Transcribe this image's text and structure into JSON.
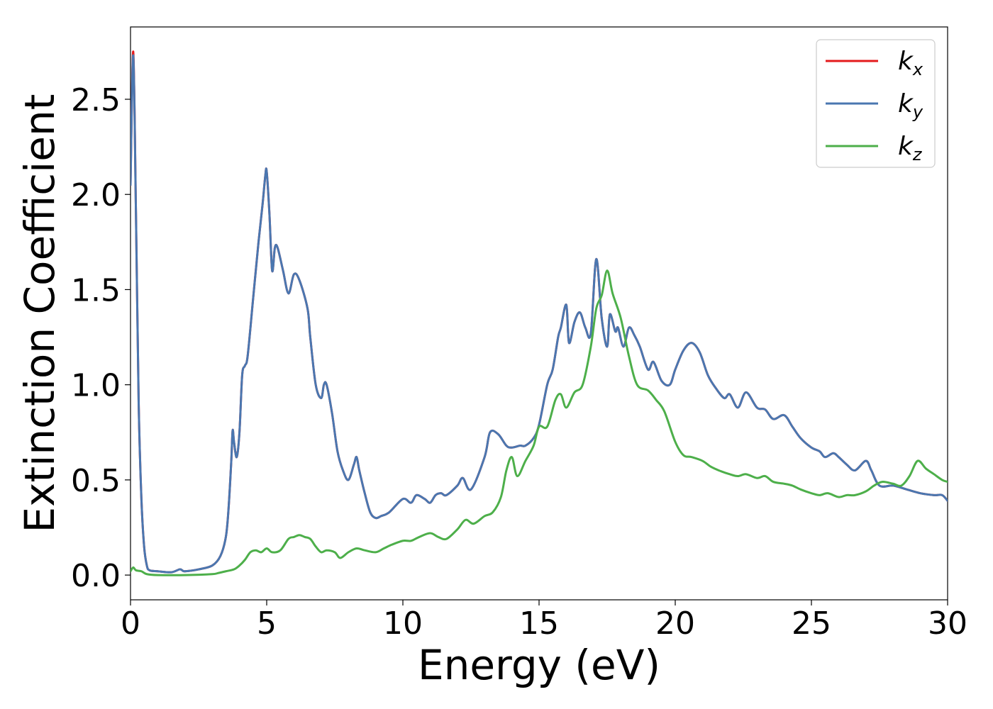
{
  "chart_data": {
    "type": "line",
    "xlabel": "Energy (eV)",
    "ylabel": "Extinction Coefficient",
    "xlim": [
      0,
      30
    ],
    "ylim": [
      -0.13,
      2.88
    ],
    "xticks": [
      "0",
      "5",
      "10",
      "15",
      "20",
      "25",
      "30"
    ],
    "yticks": [
      "0.0",
      "0.5",
      "1.0",
      "1.5",
      "2.0",
      "2.5"
    ],
    "grid": false,
    "legend_position": "top-right",
    "series": [
      {
        "name": "k_x",
        "legend_base": "k",
        "legend_sub": "x",
        "color": "#e41a1c",
        "x": [
          0.0,
          0.1,
          0.2,
          0.3,
          0.4,
          0.5,
          0.6,
          0.7,
          1.0,
          1.5,
          1.8,
          1.9,
          2.0,
          2.5,
          3.0,
          3.3,
          3.5,
          3.6,
          3.7,
          3.75,
          3.8,
          3.9,
          4.0,
          4.1,
          4.2,
          4.3,
          4.5,
          4.7,
          4.85,
          4.95,
          5.0,
          5.1,
          5.2,
          5.3,
          5.4,
          5.6,
          5.8,
          6.0,
          6.2,
          6.5,
          6.6,
          6.8,
          7.0,
          7.1,
          7.2,
          7.4,
          7.6,
          7.8,
          8.0,
          8.2,
          8.3,
          8.4,
          8.6,
          8.8,
          9.0,
          9.2,
          9.5,
          10.0,
          10.3,
          10.5,
          10.8,
          11.0,
          11.2,
          11.4,
          11.6,
          12.0,
          12.2,
          12.5,
          13.0,
          13.2,
          13.5,
          13.8,
          14.0,
          14.3,
          14.5,
          14.8,
          15.0,
          15.3,
          15.5,
          15.7,
          15.8,
          16.0,
          16.1,
          16.3,
          16.5,
          16.7,
          16.9,
          17.1,
          17.3,
          17.5,
          17.6,
          17.8,
          17.9,
          18.1,
          18.3,
          18.5,
          18.7,
          19.0,
          19.2,
          19.5,
          19.8,
          20.0,
          20.3,
          20.6,
          20.9,
          21.2,
          21.5,
          21.8,
          22.0,
          22.3,
          22.6,
          23.0,
          23.3,
          23.6,
          24.0,
          24.3,
          24.6,
          25.0,
          25.3,
          25.5,
          25.8,
          26.0,
          26.3,
          26.6,
          27.0,
          27.2,
          27.5,
          28.0,
          28.5,
          29.0,
          29.5,
          29.8,
          30.0
        ],
        "y": [
          2.05,
          2.75,
          1.9,
          0.9,
          0.4,
          0.15,
          0.05,
          0.025,
          0.02,
          0.015,
          0.03,
          0.025,
          0.02,
          0.03,
          0.05,
          0.1,
          0.2,
          0.35,
          0.6,
          0.76,
          0.7,
          0.62,
          0.75,
          1.05,
          1.1,
          1.15,
          1.45,
          1.75,
          1.95,
          2.1,
          2.12,
          1.9,
          1.6,
          1.72,
          1.72,
          1.6,
          1.48,
          1.58,
          1.55,
          1.4,
          1.25,
          1.0,
          0.93,
          1.0,
          1.0,
          0.85,
          0.65,
          0.55,
          0.5,
          0.58,
          0.62,
          0.55,
          0.43,
          0.33,
          0.3,
          0.31,
          0.33,
          0.4,
          0.38,
          0.42,
          0.4,
          0.38,
          0.42,
          0.43,
          0.42,
          0.47,
          0.51,
          0.45,
          0.62,
          0.75,
          0.74,
          0.68,
          0.67,
          0.68,
          0.68,
          0.72,
          0.79,
          1.0,
          1.08,
          1.25,
          1.3,
          1.42,
          1.22,
          1.33,
          1.38,
          1.3,
          1.27,
          1.66,
          1.35,
          1.2,
          1.37,
          1.28,
          1.3,
          1.2,
          1.3,
          1.26,
          1.2,
          1.08,
          1.12,
          1.02,
          1.0,
          1.08,
          1.18,
          1.22,
          1.17,
          1.05,
          0.98,
          0.93,
          0.95,
          0.88,
          0.96,
          0.88,
          0.87,
          0.82,
          0.84,
          0.78,
          0.72,
          0.67,
          0.65,
          0.62,
          0.64,
          0.62,
          0.58,
          0.55,
          0.6,
          0.55,
          0.47,
          0.47,
          0.45,
          0.43,
          0.42,
          0.42,
          0.39
        ]
      },
      {
        "name": "k_y",
        "legend_base": "k",
        "legend_sub": "y",
        "color": "#4a77b0",
        "x": [
          0.0,
          0.1,
          0.2,
          0.3,
          0.4,
          0.5,
          0.6,
          0.7,
          1.0,
          1.5,
          1.8,
          1.9,
          2.0,
          2.5,
          3.0,
          3.3,
          3.5,
          3.6,
          3.7,
          3.75,
          3.8,
          3.9,
          4.0,
          4.1,
          4.2,
          4.3,
          4.5,
          4.7,
          4.85,
          4.95,
          5.0,
          5.1,
          5.2,
          5.3,
          5.4,
          5.6,
          5.8,
          6.0,
          6.2,
          6.5,
          6.6,
          6.8,
          7.0,
          7.1,
          7.2,
          7.4,
          7.6,
          7.8,
          8.0,
          8.2,
          8.3,
          8.4,
          8.6,
          8.8,
          9.0,
          9.2,
          9.5,
          10.0,
          10.3,
          10.5,
          10.8,
          11.0,
          11.2,
          11.4,
          11.6,
          12.0,
          12.2,
          12.5,
          13.0,
          13.2,
          13.5,
          13.8,
          14.0,
          14.3,
          14.5,
          14.8,
          15.0,
          15.3,
          15.5,
          15.7,
          15.8,
          16.0,
          16.1,
          16.3,
          16.5,
          16.7,
          16.9,
          17.1,
          17.3,
          17.5,
          17.6,
          17.8,
          17.9,
          18.1,
          18.3,
          18.5,
          18.7,
          19.0,
          19.2,
          19.5,
          19.8,
          20.0,
          20.3,
          20.6,
          20.9,
          21.2,
          21.5,
          21.8,
          22.0,
          22.3,
          22.6,
          23.0,
          23.3,
          23.6,
          24.0,
          24.3,
          24.6,
          25.0,
          25.3,
          25.5,
          25.8,
          26.0,
          26.3,
          26.6,
          27.0,
          27.2,
          27.5,
          28.0,
          28.5,
          29.0,
          29.5,
          29.8,
          30.0
        ],
        "y": [
          2.05,
          2.73,
          1.9,
          0.9,
          0.4,
          0.15,
          0.05,
          0.025,
          0.02,
          0.015,
          0.03,
          0.025,
          0.02,
          0.03,
          0.05,
          0.1,
          0.2,
          0.35,
          0.6,
          0.76,
          0.7,
          0.62,
          0.75,
          1.05,
          1.1,
          1.15,
          1.45,
          1.75,
          1.95,
          2.1,
          2.12,
          1.9,
          1.6,
          1.72,
          1.72,
          1.6,
          1.48,
          1.58,
          1.55,
          1.4,
          1.25,
          1.0,
          0.93,
          1.0,
          1.0,
          0.85,
          0.65,
          0.55,
          0.5,
          0.58,
          0.62,
          0.55,
          0.43,
          0.33,
          0.3,
          0.31,
          0.33,
          0.4,
          0.38,
          0.42,
          0.4,
          0.38,
          0.42,
          0.43,
          0.42,
          0.47,
          0.51,
          0.45,
          0.62,
          0.75,
          0.74,
          0.68,
          0.67,
          0.68,
          0.68,
          0.72,
          0.79,
          1.0,
          1.08,
          1.25,
          1.3,
          1.42,
          1.22,
          1.33,
          1.38,
          1.3,
          1.27,
          1.66,
          1.35,
          1.2,
          1.37,
          1.28,
          1.3,
          1.2,
          1.3,
          1.26,
          1.2,
          1.08,
          1.12,
          1.02,
          1.0,
          1.08,
          1.18,
          1.22,
          1.17,
          1.05,
          0.98,
          0.93,
          0.95,
          0.88,
          0.96,
          0.88,
          0.87,
          0.82,
          0.84,
          0.78,
          0.72,
          0.67,
          0.65,
          0.62,
          0.64,
          0.62,
          0.58,
          0.55,
          0.6,
          0.55,
          0.47,
          0.47,
          0.45,
          0.43,
          0.42,
          0.42,
          0.39
        ]
      },
      {
        "name": "k_z",
        "legend_base": "k",
        "legend_sub": "z",
        "color": "#4daf4a",
        "x": [
          0.0,
          0.1,
          0.2,
          0.4,
          0.6,
          1.0,
          2.0,
          3.0,
          3.2,
          3.5,
          3.8,
          4.0,
          4.2,
          4.4,
          4.6,
          4.8,
          5.0,
          5.2,
          5.5,
          5.8,
          6.0,
          6.2,
          6.4,
          6.6,
          6.8,
          7.0,
          7.2,
          7.5,
          7.7,
          8.0,
          8.3,
          8.6,
          9.0,
          9.3,
          9.6,
          10.0,
          10.3,
          10.6,
          11.0,
          11.3,
          11.6,
          12.0,
          12.3,
          12.6,
          13.0,
          13.3,
          13.6,
          13.8,
          14.0,
          14.2,
          14.5,
          14.8,
          15.0,
          15.3,
          15.6,
          15.8,
          16.0,
          16.3,
          16.6,
          16.9,
          17.1,
          17.3,
          17.5,
          17.7,
          18.0,
          18.3,
          18.6,
          19.0,
          19.3,
          19.6,
          20.0,
          20.3,
          20.6,
          21.0,
          21.3,
          21.6,
          22.0,
          22.3,
          22.6,
          23.0,
          23.3,
          23.6,
          24.0,
          24.3,
          24.6,
          25.0,
          25.3,
          25.6,
          26.0,
          26.3,
          26.6,
          27.0,
          27.3,
          27.6,
          28.0,
          28.3,
          28.6,
          28.9,
          29.2,
          29.5,
          29.8,
          30.0
        ],
        "y": [
          0.02,
          0.04,
          0.025,
          0.02,
          0.005,
          0.0,
          0.0,
          0.005,
          0.01,
          0.02,
          0.03,
          0.05,
          0.08,
          0.12,
          0.13,
          0.12,
          0.14,
          0.12,
          0.13,
          0.19,
          0.2,
          0.21,
          0.2,
          0.19,
          0.15,
          0.12,
          0.13,
          0.12,
          0.09,
          0.12,
          0.14,
          0.13,
          0.12,
          0.14,
          0.16,
          0.18,
          0.18,
          0.2,
          0.22,
          0.2,
          0.19,
          0.24,
          0.29,
          0.27,
          0.31,
          0.33,
          0.41,
          0.55,
          0.62,
          0.52,
          0.6,
          0.68,
          0.78,
          0.78,
          0.92,
          0.95,
          0.88,
          0.96,
          1.0,
          1.2,
          1.4,
          1.47,
          1.6,
          1.48,
          1.35,
          1.15,
          1.0,
          0.97,
          0.92,
          0.86,
          0.7,
          0.63,
          0.62,
          0.6,
          0.57,
          0.55,
          0.53,
          0.52,
          0.53,
          0.51,
          0.52,
          0.49,
          0.48,
          0.47,
          0.45,
          0.43,
          0.42,
          0.43,
          0.41,
          0.42,
          0.42,
          0.44,
          0.47,
          0.49,
          0.48,
          0.47,
          0.52,
          0.6,
          0.56,
          0.53,
          0.5,
          0.49
        ]
      }
    ]
  }
}
